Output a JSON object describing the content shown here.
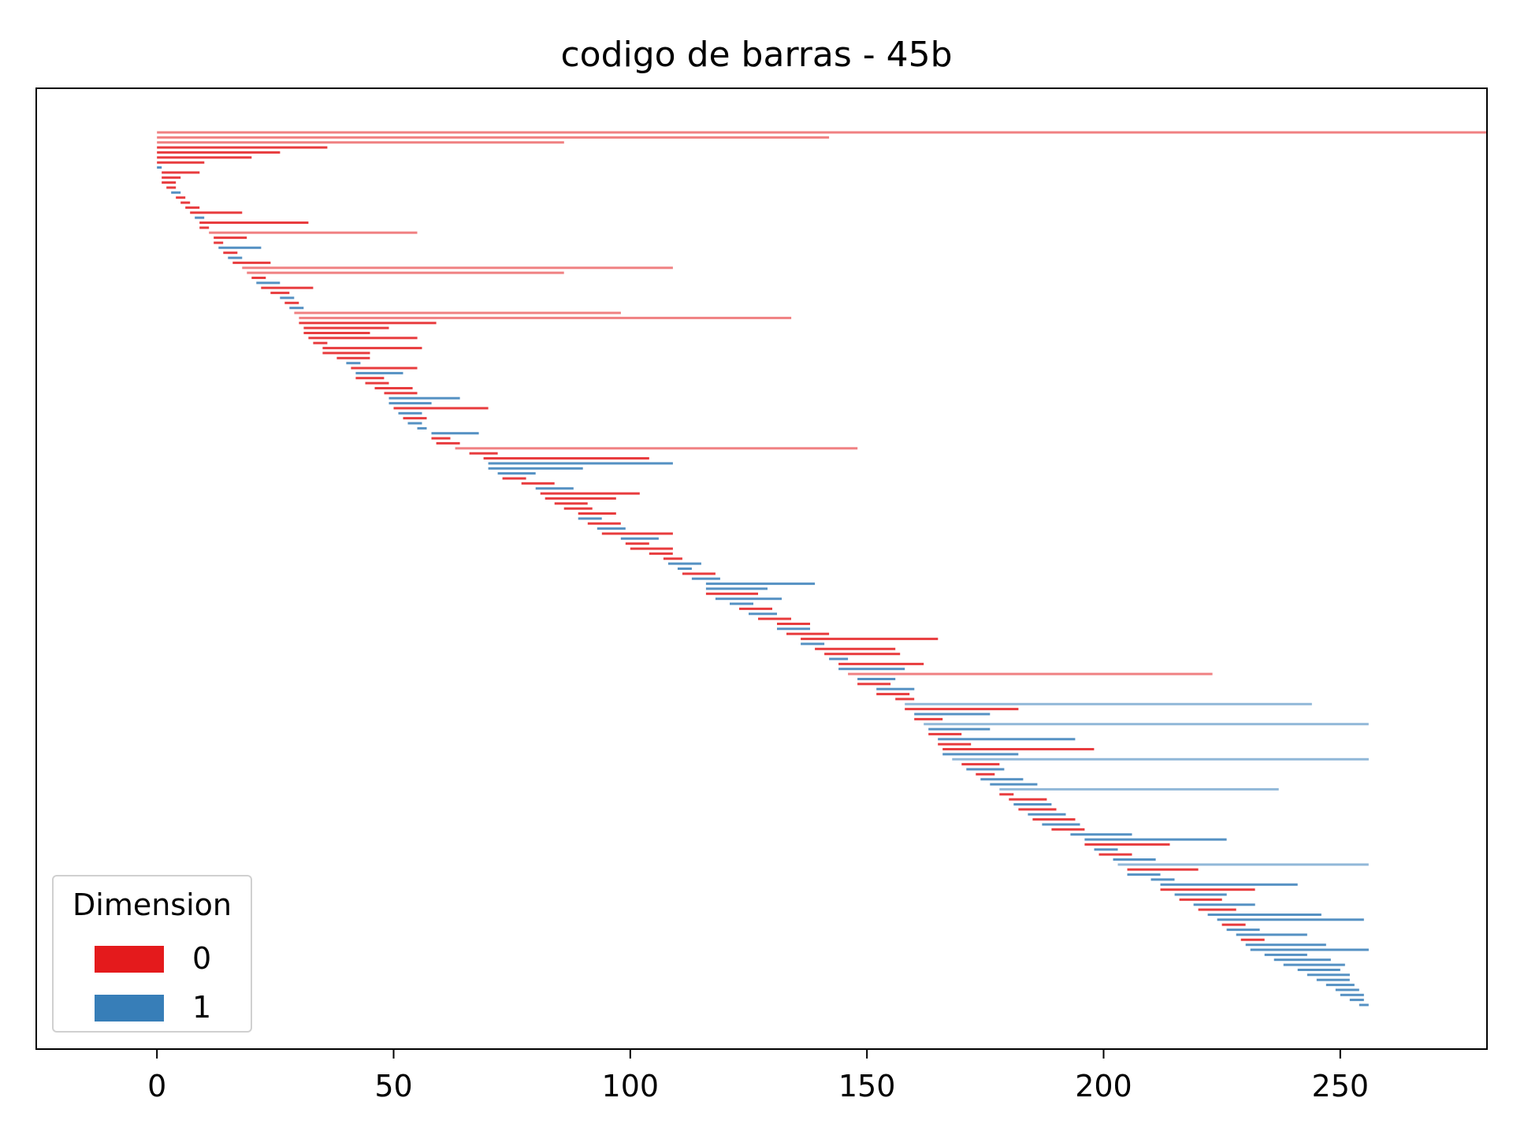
{
  "chart_data": {
    "type": "bar",
    "subtype": "persistence-barcode",
    "title": "codigo de barras - 45b",
    "xlabel": "",
    "ylabel": "",
    "xlim": [
      -25.5,
      281
    ],
    "xticks": [
      "0",
      "50",
      "100",
      "150",
      "200",
      "250"
    ],
    "xtick_values": [
      0,
      50,
      100,
      150,
      200,
      250
    ],
    "grid": false,
    "legend": {
      "title": "Dimension",
      "placement": "lower-left",
      "entries": [
        {
          "label": "0",
          "color": "#e41a1c"
        },
        {
          "label": "1",
          "color": "#377eb8"
        }
      ]
    },
    "colors": {
      "dim0": "#e41a1c",
      "dim1": "#377eb8"
    },
    "series": [
      {
        "name": "0",
        "color": "#e41a1c",
        "intervals": [
          [
            0,
            281
          ],
          [
            0,
            142
          ],
          [
            0,
            86
          ],
          [
            0,
            36
          ],
          [
            0,
            26
          ],
          [
            0,
            10
          ],
          [
            0,
            20
          ],
          [
            1,
            9
          ],
          [
            1,
            5
          ],
          [
            1,
            4
          ],
          [
            2,
            4
          ],
          [
            4,
            6
          ],
          [
            5,
            7
          ],
          [
            6,
            9
          ],
          [
            7,
            18
          ],
          [
            9,
            11
          ],
          [
            9,
            32
          ],
          [
            11,
            55
          ],
          [
            12,
            19
          ],
          [
            12,
            14
          ],
          [
            14,
            17
          ],
          [
            16,
            24
          ],
          [
            18,
            109
          ],
          [
            19,
            86
          ],
          [
            20,
            23
          ],
          [
            22,
            33
          ],
          [
            24,
            28
          ],
          [
            27,
            30
          ],
          [
            29,
            98
          ],
          [
            30,
            134
          ],
          [
            30,
            59
          ],
          [
            31,
            45
          ],
          [
            31,
            49
          ],
          [
            32,
            55
          ],
          [
            33,
            36
          ],
          [
            35,
            45
          ],
          [
            35,
            56
          ],
          [
            38,
            45
          ],
          [
            41,
            55
          ],
          [
            42,
            48
          ],
          [
            44,
            49
          ],
          [
            46,
            54
          ],
          [
            48,
            55
          ],
          [
            50,
            70
          ],
          [
            52,
            57
          ],
          [
            58,
            62
          ],
          [
            59,
            64
          ],
          [
            63,
            148
          ],
          [
            66,
            72
          ],
          [
            69,
            104
          ],
          [
            73,
            78
          ],
          [
            77,
            84
          ],
          [
            81,
            102
          ],
          [
            82,
            97
          ],
          [
            84,
            91
          ],
          [
            86,
            92
          ],
          [
            89,
            97
          ],
          [
            91,
            98
          ],
          [
            94,
            109
          ],
          [
            99,
            104
          ],
          [
            100,
            109
          ],
          [
            104,
            109
          ],
          [
            107,
            111
          ],
          [
            111,
            118
          ],
          [
            116,
            127
          ],
          [
            123,
            130
          ],
          [
            127,
            134
          ],
          [
            131,
            138
          ],
          [
            133,
            142
          ],
          [
            136,
            165
          ],
          [
            139,
            156
          ],
          [
            141,
            157
          ],
          [
            144,
            162
          ],
          [
            146,
            223
          ],
          [
            148,
            155
          ],
          [
            152,
            159
          ],
          [
            156,
            160
          ],
          [
            158,
            182
          ],
          [
            160,
            166
          ],
          [
            163,
            170
          ],
          [
            165,
            172
          ],
          [
            166,
            198
          ],
          [
            170,
            178
          ],
          [
            173,
            177
          ],
          [
            178,
            181
          ],
          [
            180,
            188
          ],
          [
            182,
            190
          ],
          [
            185,
            194
          ],
          [
            189,
            196
          ],
          [
            196,
            214
          ],
          [
            199,
            206
          ],
          [
            205,
            220
          ],
          [
            212,
            232
          ],
          [
            216,
            225
          ],
          [
            220,
            228
          ],
          [
            225,
            230
          ],
          [
            229,
            234
          ]
        ]
      },
      {
        "name": "1",
        "color": "#377eb8",
        "intervals": [
          [
            0,
            1
          ],
          [
            3,
            5
          ],
          [
            8,
            10
          ],
          [
            13,
            22
          ],
          [
            15,
            18
          ],
          [
            21,
            26
          ],
          [
            26,
            29
          ],
          [
            28,
            31
          ],
          [
            40,
            43
          ],
          [
            42,
            52
          ],
          [
            49,
            64
          ],
          [
            49,
            58
          ],
          [
            51,
            56
          ],
          [
            53,
            56
          ],
          [
            55,
            57
          ],
          [
            58,
            68
          ],
          [
            70,
            90
          ],
          [
            70,
            109
          ],
          [
            72,
            80
          ],
          [
            80,
            88
          ],
          [
            89,
            94
          ],
          [
            93,
            99
          ],
          [
            98,
            106
          ],
          [
            108,
            115
          ],
          [
            110,
            113
          ],
          [
            113,
            119
          ],
          [
            116,
            129
          ],
          [
            116,
            139
          ],
          [
            118,
            132
          ],
          [
            121,
            126
          ],
          [
            125,
            131
          ],
          [
            131,
            138
          ],
          [
            136,
            141
          ],
          [
            142,
            146
          ],
          [
            144,
            158
          ],
          [
            148,
            156
          ],
          [
            152,
            160
          ],
          [
            158,
            244
          ],
          [
            160,
            176
          ],
          [
            162,
            256
          ],
          [
            163,
            176
          ],
          [
            165,
            194
          ],
          [
            166,
            182
          ],
          [
            168,
            256
          ],
          [
            171,
            179
          ],
          [
            174,
            183
          ],
          [
            176,
            186
          ],
          [
            178,
            237
          ],
          [
            181,
            189
          ],
          [
            184,
            192
          ],
          [
            187,
            195
          ],
          [
            193,
            206
          ],
          [
            196,
            226
          ],
          [
            198,
            203
          ],
          [
            202,
            211
          ],
          [
            203,
            256
          ],
          [
            205,
            212
          ],
          [
            210,
            215
          ],
          [
            212,
            241
          ],
          [
            215,
            226
          ],
          [
            219,
            232
          ],
          [
            222,
            246
          ],
          [
            224,
            255
          ],
          [
            226,
            233
          ],
          [
            228,
            243
          ],
          [
            230,
            247
          ],
          [
            231,
            256
          ],
          [
            234,
            243
          ],
          [
            236,
            248
          ],
          [
            238,
            251
          ],
          [
            241,
            250
          ],
          [
            243,
            252
          ],
          [
            245,
            252
          ],
          [
            247,
            253
          ],
          [
            249,
            254
          ],
          [
            250,
            255
          ],
          [
            252,
            255
          ],
          [
            254,
            256
          ]
        ]
      }
    ]
  }
}
